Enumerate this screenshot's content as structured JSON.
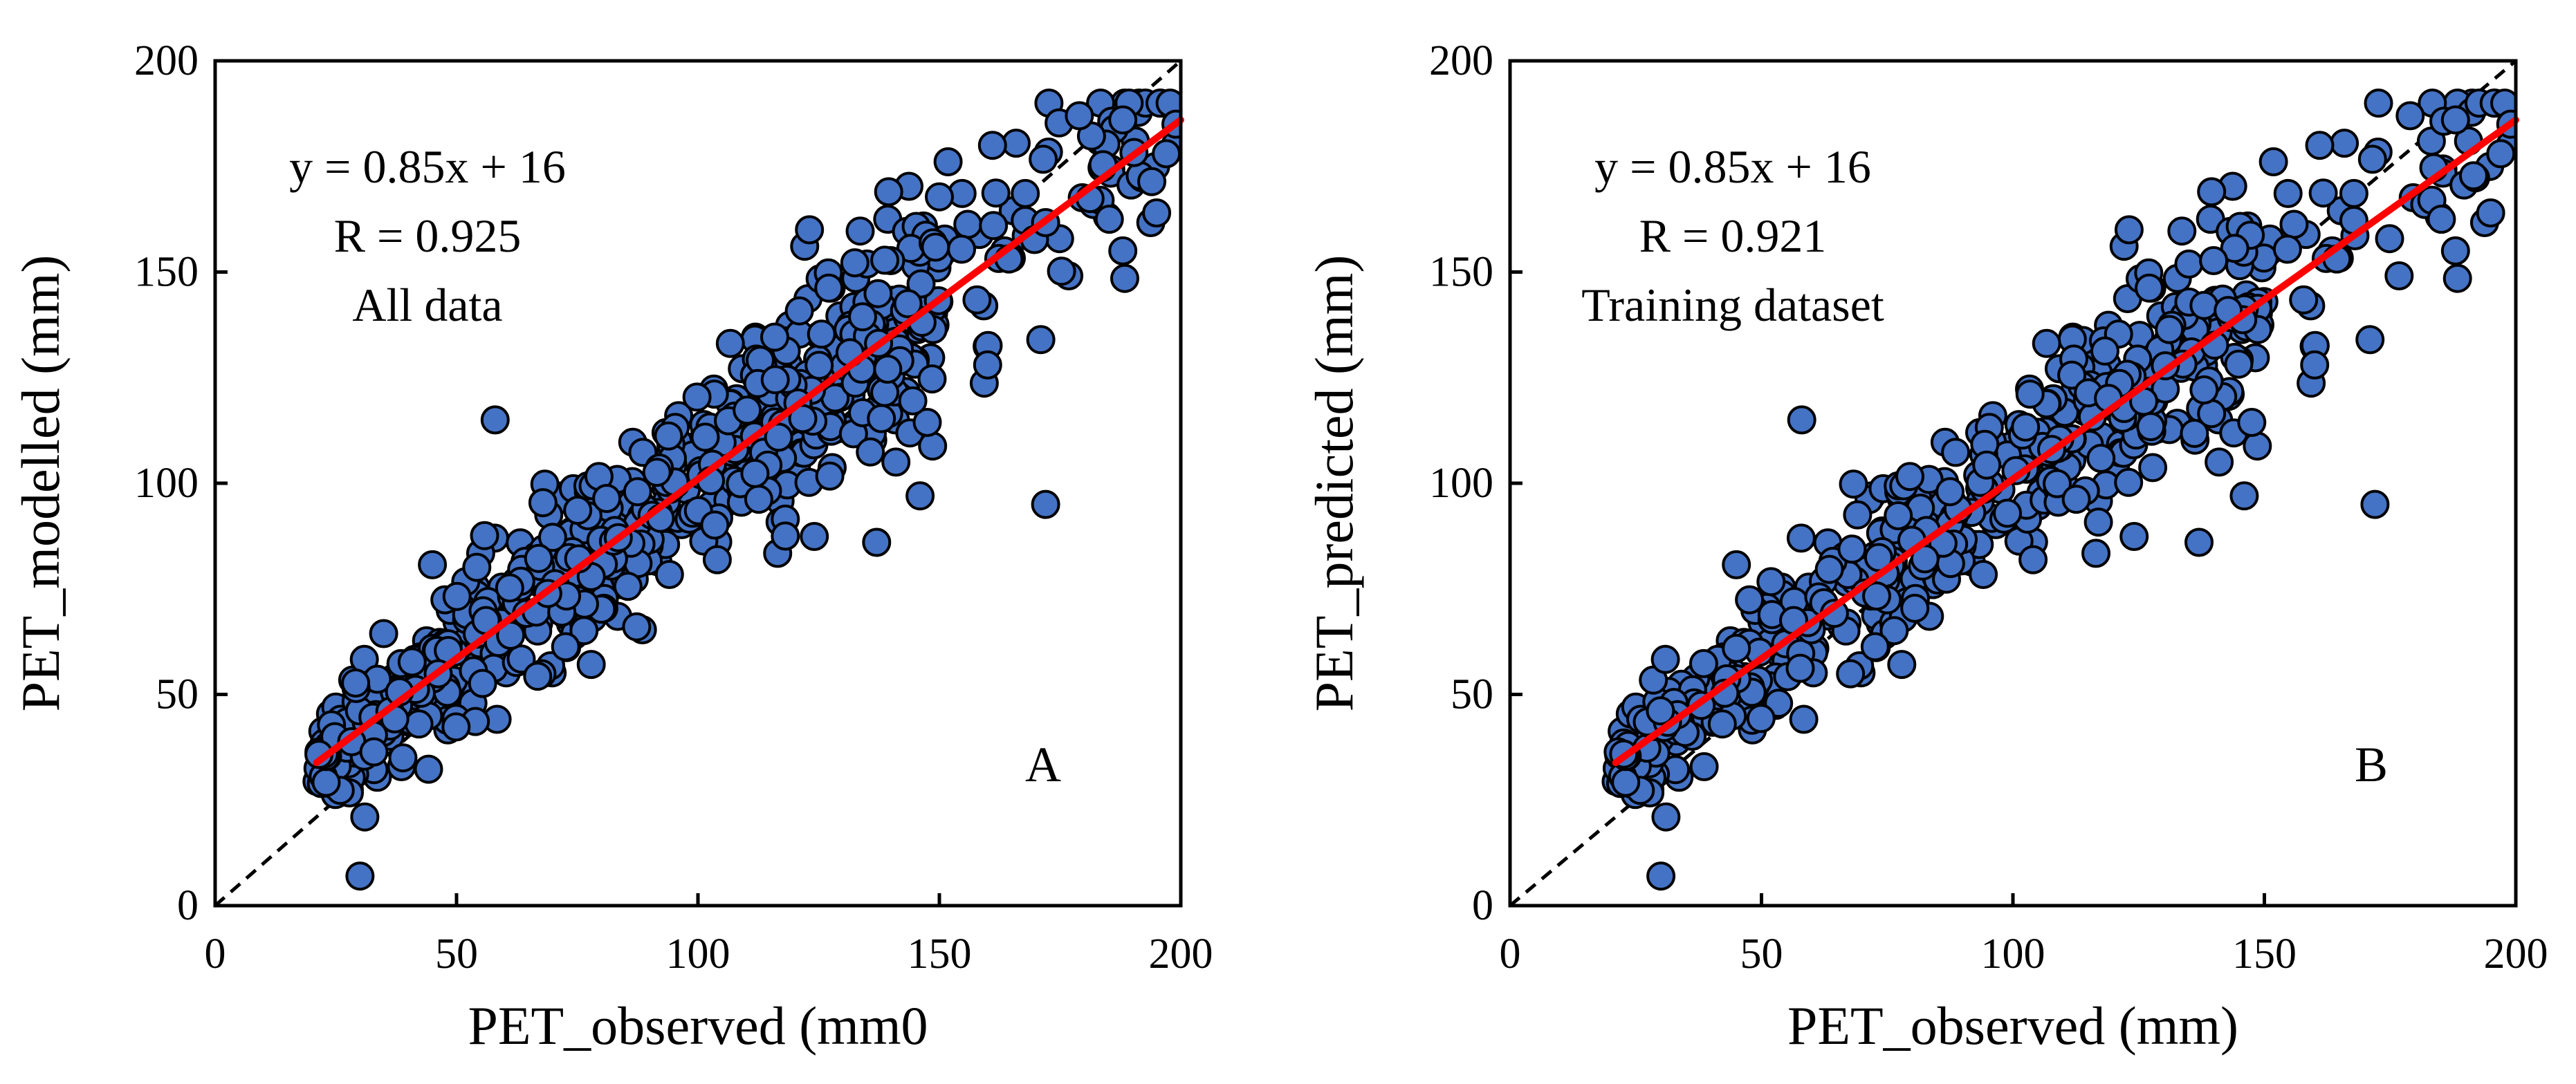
{
  "colors": {
    "point_fill": "#4472C4",
    "point_stroke": "#000000",
    "fit_line": "#FF0000",
    "identity_line": "#000000",
    "frame": "#000000"
  },
  "chart_data": [
    {
      "type": "scatter",
      "panel": "A",
      "xlabel": "PET_observed (mm0",
      "ylabel": "PET_modelled (mm)",
      "xlim": [
        0,
        200
      ],
      "ylim": [
        0,
        200
      ],
      "xticks": [
        "0",
        "50",
        "100",
        "150",
        "200"
      ],
      "yticks": [
        "0",
        "50",
        "100",
        "150",
        "200"
      ],
      "annotations": [
        "y = 0.85x + 16",
        "R = 0.925",
        "All data"
      ],
      "panel_label": "A",
      "fit": {
        "slope": 0.85,
        "intercept": 16,
        "x_range": [
          21,
          200
        ]
      },
      "identity_line": true,
      "series": [
        {
          "name": "points",
          "x": [],
          "y": []
        }
      ]
    },
    {
      "type": "scatter",
      "panel": "B",
      "xlabel": "PET_observed (mm)",
      "ylabel": "PET_predicted (mm)",
      "xlim": [
        0,
        200
      ],
      "ylim": [
        0,
        200
      ],
      "xticks": [
        "0",
        "50",
        "100",
        "150",
        "200"
      ],
      "yticks": [
        "0",
        "50",
        "100",
        "150",
        "200"
      ],
      "annotations": [
        "y = 0.85x + 16",
        "R = 0.921",
        "Training dataset"
      ],
      "panel_label": "B",
      "fit": {
        "slope": 0.85,
        "intercept": 16,
        "x_range": [
          21,
          200
        ]
      },
      "identity_line": true,
      "series": [
        {
          "name": "points",
          "x": [],
          "y": []
        }
      ]
    }
  ]
}
